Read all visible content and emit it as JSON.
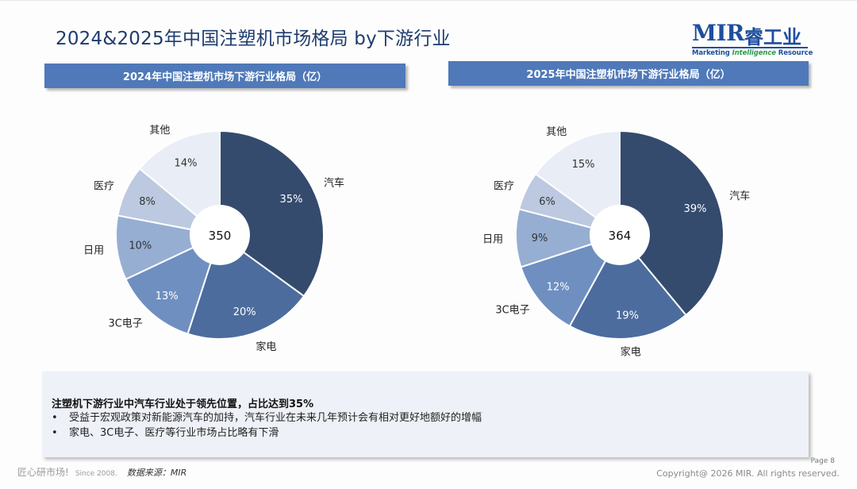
{
  "page": {
    "title": "2024&2025年中国注塑机市场格局 by下游行业"
  },
  "logo": {
    "main": "MIR",
    "cn": "睿工业",
    "sub_a": "Marketing ",
    "sub_b": "Intelligence",
    "sub_c": " Resource"
  },
  "colors": {
    "header_bg": "#4f79b9",
    "slice_auto": "#344b6e",
    "slice_appliance": "#4c6c9e",
    "slice_3c": "#6f8fc0",
    "slice_daily": "#97aed3",
    "slice_medical": "#bcc9e1",
    "slice_other": "#e9edf5"
  },
  "chart_data": [
    {
      "type": "pie",
      "title": "2024年中国注塑机市场下游行业格局（亿）",
      "center_label": "350",
      "slices": [
        {
          "name": "汽车",
          "value": 35,
          "label": "35%"
        },
        {
          "name": "家电",
          "value": 20,
          "label": "20%"
        },
        {
          "name": "3C电子",
          "value": 13,
          "label": "13%"
        },
        {
          "name": "日用",
          "value": 10,
          "label": "10%"
        },
        {
          "name": "医疗",
          "value": 8,
          "label": "8%"
        },
        {
          "name": "其他",
          "value": 14,
          "label": "14%"
        }
      ]
    },
    {
      "type": "pie",
      "title": "2025年中国注塑机市场下游行业格局（亿）",
      "center_label": "364",
      "slices": [
        {
          "name": "汽车",
          "value": 39,
          "label": "39%"
        },
        {
          "name": "家电",
          "value": 19,
          "label": "19%"
        },
        {
          "name": "3C电子",
          "value": 12,
          "label": "12%"
        },
        {
          "name": "日用",
          "value": 9,
          "label": "9%"
        },
        {
          "name": "医疗",
          "value": 6,
          "label": "6%"
        },
        {
          "name": "其他",
          "value": 15,
          "label": "15%"
        }
      ]
    }
  ],
  "summary": {
    "headline": "注塑机下游行业中汽车行业处于领先位置，占比达到35%",
    "bullets": [
      "受益于宏观政策对新能源汽车的加持，汽车行业在未来几年预计会有相对更好地额好的增幅",
      "家电、3C电子、医疗等行业市场占比略有下滑"
    ],
    "bullet_glyph": "•"
  },
  "footer": {
    "slogan": "匠心研市场!",
    "since": "Since 2008.",
    "source": "数据来源：MIR",
    "page": "Page 8",
    "copyright": "Copyright@ 2026 MIR. All rights reserved."
  }
}
